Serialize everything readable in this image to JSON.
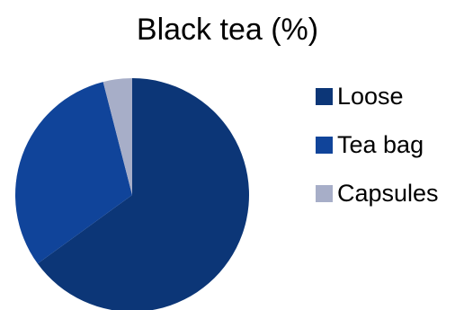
{
  "chart_data": {
    "type": "pie",
    "title": "Black tea (%)",
    "slices": [
      {
        "label": "Loose",
        "value": 65,
        "color": "#0c3677"
      },
      {
        "label": "Tea bag",
        "value": 31,
        "color": "#10449a"
      },
      {
        "label": "Capsules",
        "value": 4,
        "color": "#a7aec8"
      }
    ],
    "legend_position": "right"
  }
}
